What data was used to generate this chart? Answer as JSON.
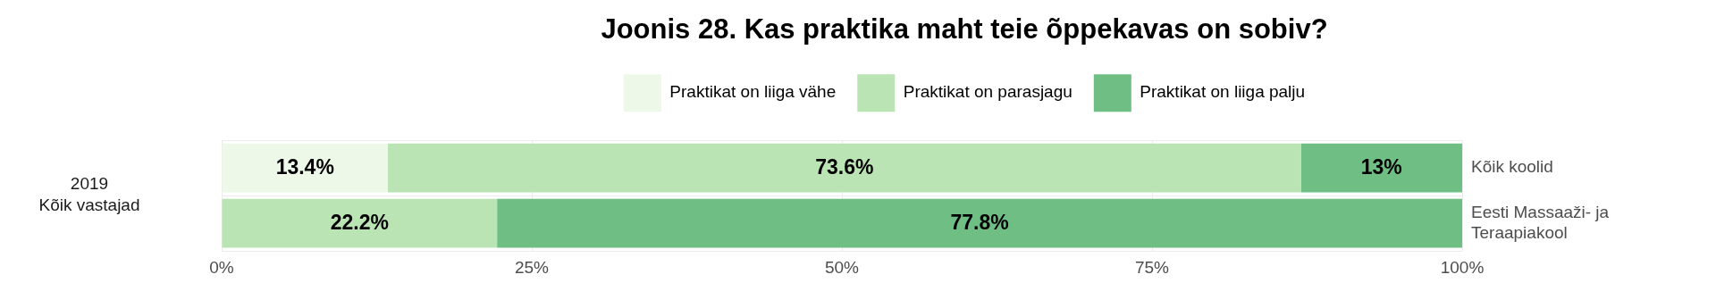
{
  "chart_data": {
    "type": "bar",
    "orientation": "horizontal",
    "stacked": true,
    "title": "Joonis 28. Kas praktika maht teie õppekavas on sobiv?",
    "categories": [
      "Kõik koolid",
      "Eesti Massaaži- ja Teraapiakool"
    ],
    "series": [
      {
        "name": "Praktikat on liiga vähe",
        "color": "#edf8e9",
        "values": [
          13.4,
          0
        ],
        "value_labels": [
          "13.4%",
          null
        ]
      },
      {
        "name": "Praktikat on parasjagu",
        "color": "#bae4b3",
        "values": [
          73.6,
          22.2
        ],
        "value_labels": [
          "73.6%",
          "22.2%"
        ]
      },
      {
        "name": "Praktikat on liiga palju",
        "color": "#6fbf85",
        "values": [
          13,
          77.8
        ],
        "value_labels": [
          "13%",
          "77.8%"
        ]
      }
    ],
    "xlim": [
      0,
      100
    ],
    "xticks": [
      {
        "value": 0,
        "label": "0%"
      },
      {
        "value": 25,
        "label": "25%"
      },
      {
        "value": 50,
        "label": "50%"
      },
      {
        "value": 75,
        "label": "75%"
      },
      {
        "value": 100,
        "label": "100%"
      }
    ],
    "grid": true,
    "legend": "top",
    "annotations": [
      "2019\nKõik vastajad"
    ]
  }
}
